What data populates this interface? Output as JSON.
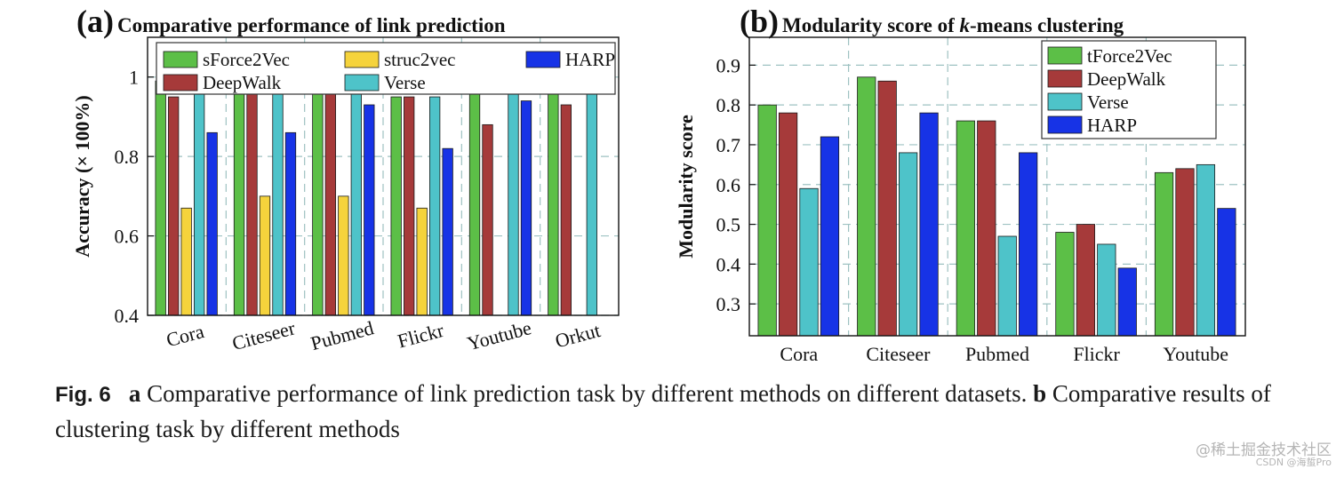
{
  "chart_data": [
    {
      "type": "bar",
      "panel_label": "(a)",
      "title": "Comparative performance of link prediction",
      "xlabel": "",
      "ylabel": "Accuracy (× 100%)",
      "ylim": [
        0.4,
        1.1
      ],
      "yticks": [
        "0.4",
        "0.6",
        "0.8",
        "1"
      ],
      "grid": true,
      "legend_position": "top",
      "categories": [
        "Cora",
        "Citeseer",
        "Pubmed",
        "Flickr",
        "Youtube",
        "Orkut"
      ],
      "series": [
        {
          "name": "sForce2Vec",
          "color": "#5cbf47",
          "values": [
            0.99,
            0.99,
            0.995,
            0.95,
            0.98,
            0.97
          ]
        },
        {
          "name": "DeepWalk",
          "color": "#a63a3a",
          "values": [
            0.95,
            0.97,
            0.97,
            0.95,
            0.88,
            0.93
          ]
        },
        {
          "name": "struc2vec",
          "color": "#f5d33c",
          "values": [
            0.67,
            0.7,
            0.7,
            0.67,
            null,
            null
          ]
        },
        {
          "name": "Verse",
          "color": "#4ec3c9",
          "values": [
            0.99,
            0.99,
            0.97,
            0.95,
            0.99,
            0.97
          ]
        },
        {
          "name": "HARP",
          "color": "#1733e6",
          "values": [
            0.86,
            0.86,
            0.93,
            0.82,
            0.94,
            null
          ]
        }
      ],
      "legend_order": [
        "sForce2Vec",
        "struc2vec",
        "HARP",
        "DeepWalk",
        "Verse"
      ]
    },
    {
      "type": "bar",
      "panel_label": "(b)",
      "title_prefix": "Modularity score of ",
      "title_italic": "k",
      "title_suffix": "-means clustering",
      "xlabel": "",
      "ylabel": "Modularity score",
      "ylim": [
        0.22,
        0.97
      ],
      "yticks": [
        "0.3",
        "0.4",
        "0.5",
        "0.6",
        "0.7",
        "0.8",
        "0.9"
      ],
      "grid": true,
      "legend_position": "top-right",
      "categories": [
        "Cora",
        "Citeseer",
        "Pubmed",
        "Flickr",
        "Youtube"
      ],
      "series": [
        {
          "name": "tForce2Vec",
          "color": "#5cbf47",
          "values": [
            0.8,
            0.87,
            0.76,
            0.48,
            0.63
          ]
        },
        {
          "name": "DeepWalk",
          "color": "#a63a3a",
          "values": [
            0.78,
            0.86,
            0.76,
            0.5,
            0.64
          ]
        },
        {
          "name": "Verse",
          "color": "#4ec3c9",
          "values": [
            0.59,
            0.68,
            0.47,
            0.45,
            0.65
          ]
        },
        {
          "name": "HARP",
          "color": "#1733e6",
          "values": [
            0.72,
            0.78,
            0.68,
            0.39,
            0.54
          ]
        }
      ],
      "legend_order": [
        "tForce2Vec",
        "DeepWalk",
        "Verse",
        "HARP"
      ]
    }
  ],
  "caption": {
    "fig_label": "Fig. 6",
    "a_label": "a",
    "a_text": "Comparative performance of link prediction task by different methods on different datasets.",
    "b_label": "b",
    "b_text": "Comparative results of clustering task by different methods"
  },
  "watermark": {
    "line1": "@稀土掘金技术社区",
    "line2": "CSDN @海蜇Pro"
  }
}
